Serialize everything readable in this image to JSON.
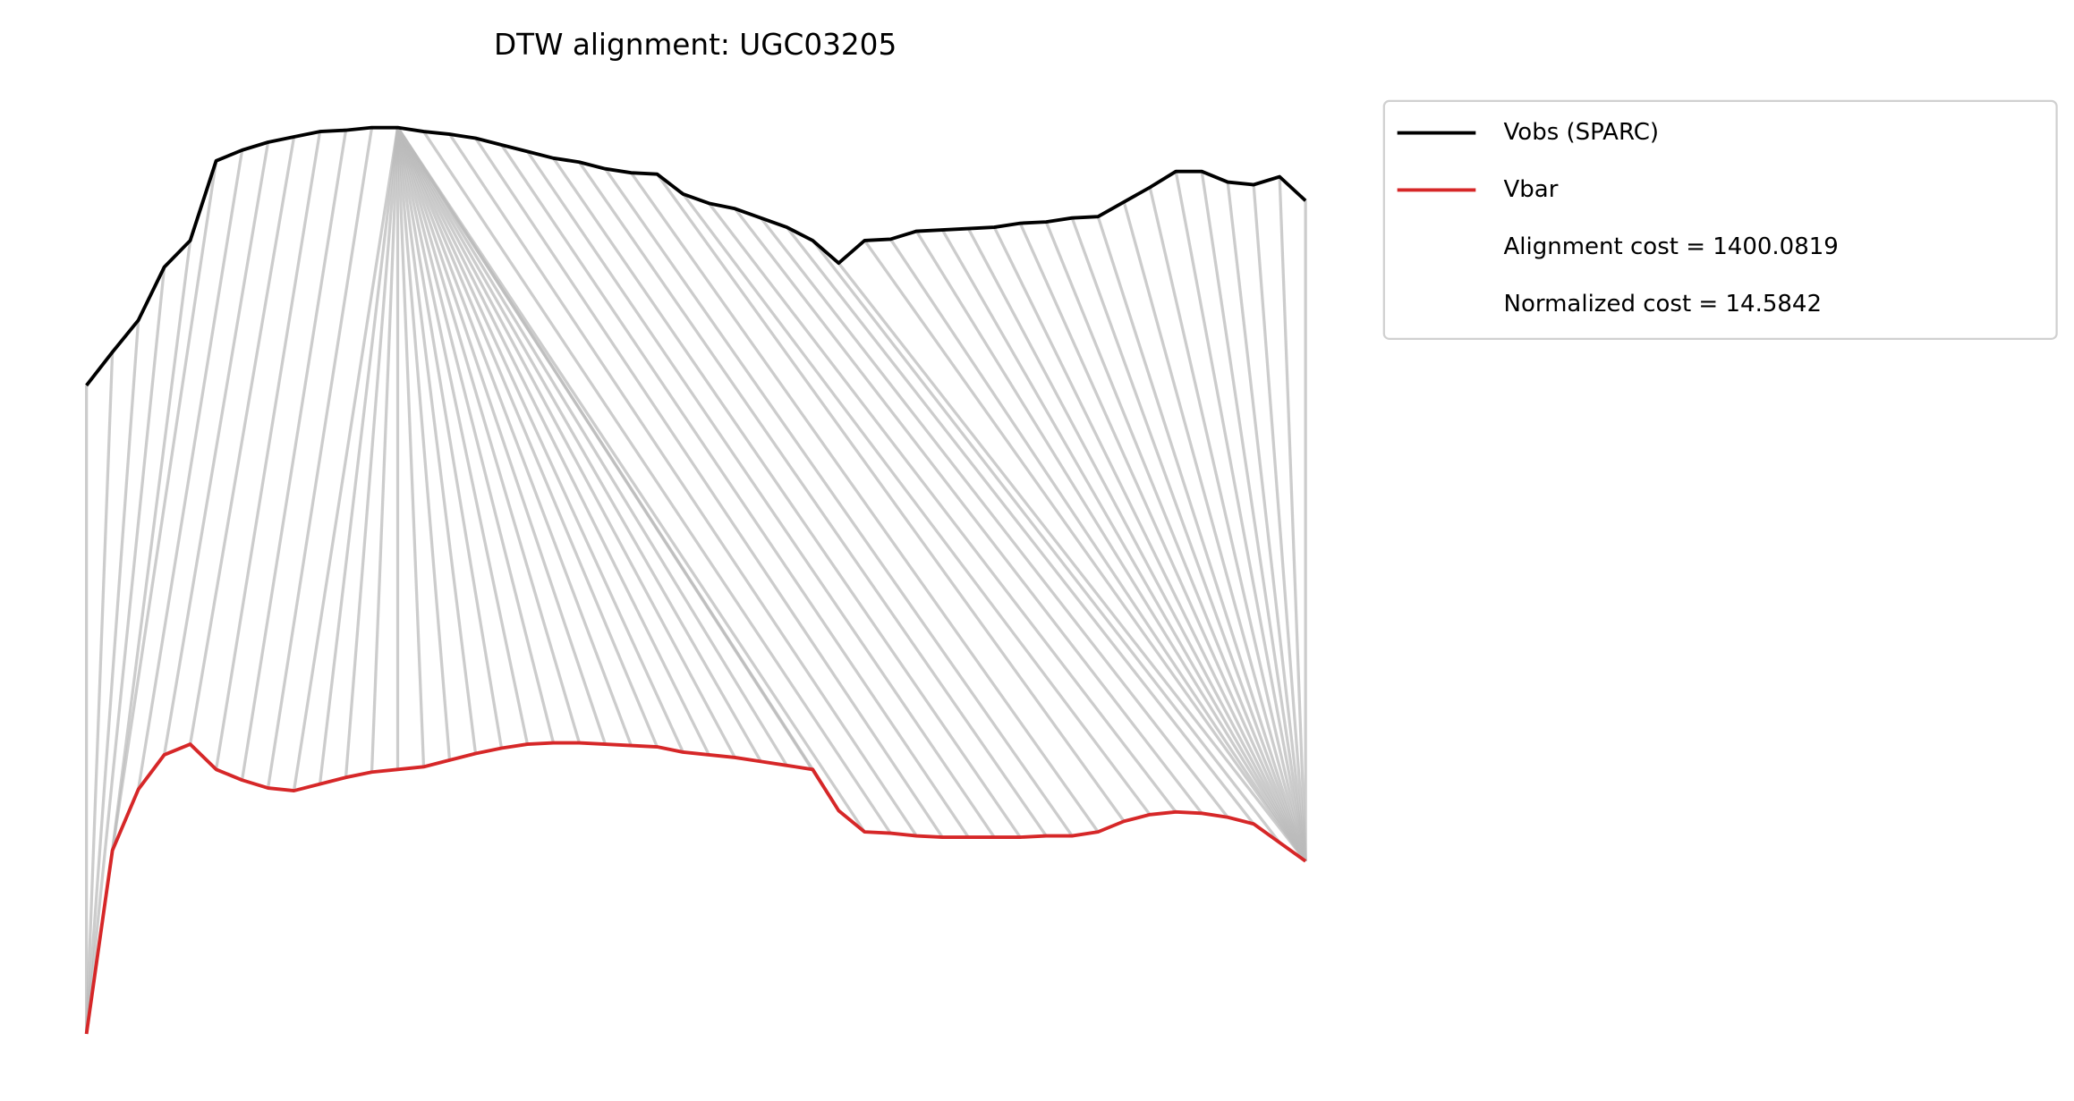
{
  "chart_data": {
    "type": "dtw",
    "title": "DTW alignment: UGC03205",
    "ylim": [
      0,
      200
    ],
    "series": [
      {
        "name": "Vobs (SPARC)",
        "color": "#000000",
        "values": [
          127.5,
          133.75,
          139.75,
          149.75,
          154.75,
          169.75,
          171.75,
          173.25,
          174.25,
          175.25,
          175.5,
          176,
          176,
          175.25,
          174.75,
          174,
          172.75,
          171.5,
          170.25,
          169.5,
          168.25,
          167.5,
          167.25,
          163.5,
          161.75,
          160.75,
          159,
          157.25,
          154.75,
          150.5,
          154.75,
          155,
          156.5,
          156.75,
          157,
          157.25,
          158,
          158.25,
          159,
          159.25,
          162,
          164.75,
          167.75,
          167.75,
          165.75,
          165.25,
          166.75,
          162.25
        ]
      },
      {
        "name": "Vbar",
        "color": "#d62728",
        "values": [
          5.5,
          40,
          51.5,
          58,
          60,
          55.25,
          53.25,
          51.75,
          51.25,
          52.5,
          53.75,
          54.75,
          55.25,
          55.75,
          57,
          58.25,
          59.25,
          60,
          60.25,
          60.25,
          60,
          59.75,
          59.5,
          58.5,
          58,
          57.5,
          56.75,
          56,
          55.25,
          47.5,
          43.5,
          43.25,
          42.75,
          42.5,
          42.5,
          42.5,
          42.5,
          42.75,
          42.75,
          43.5,
          45.5,
          46.75,
          47.25,
          47,
          46.25,
          45,
          41.5,
          38
        ]
      }
    ],
    "alignment_color": "#bbbbbb",
    "alignment": [
      [
        0,
        0
      ],
      [
        1,
        0
      ],
      [
        2,
        0
      ],
      [
        3,
        0
      ],
      [
        4,
        1
      ],
      [
        5,
        1
      ],
      [
        6,
        2
      ],
      [
        7,
        3
      ],
      [
        8,
        4
      ],
      [
        9,
        5
      ],
      [
        10,
        6
      ],
      [
        11,
        7
      ],
      [
        12,
        8
      ],
      [
        12,
        9
      ],
      [
        12,
        10
      ],
      [
        12,
        11
      ],
      [
        12,
        12
      ],
      [
        12,
        13
      ],
      [
        12,
        14
      ],
      [
        12,
        15
      ],
      [
        12,
        16
      ],
      [
        12,
        17
      ],
      [
        12,
        18
      ],
      [
        12,
        19
      ],
      [
        12,
        20
      ],
      [
        12,
        21
      ],
      [
        12,
        22
      ],
      [
        12,
        23
      ],
      [
        12,
        24
      ],
      [
        12,
        25
      ],
      [
        12,
        26
      ],
      [
        12,
        27
      ],
      [
        12,
        28
      ],
      [
        12,
        29
      ],
      [
        12,
        30
      ],
      [
        13,
        31
      ],
      [
        14,
        32
      ],
      [
        15,
        33
      ],
      [
        16,
        34
      ],
      [
        17,
        35
      ],
      [
        18,
        36
      ],
      [
        19,
        37
      ],
      [
        20,
        38
      ],
      [
        21,
        39
      ],
      [
        22,
        40
      ],
      [
        23,
        41
      ],
      [
        24,
        42
      ],
      [
        25,
        43
      ],
      [
        26,
        44
      ],
      [
        27,
        45
      ],
      [
        28,
        46
      ],
      [
        29,
        47
      ],
      [
        30,
        47
      ],
      [
        31,
        47
      ],
      [
        32,
        47
      ],
      [
        33,
        47
      ],
      [
        34,
        47
      ],
      [
        35,
        47
      ],
      [
        36,
        47
      ],
      [
        37,
        47
      ],
      [
        38,
        47
      ],
      [
        39,
        47
      ],
      [
        40,
        47
      ],
      [
        41,
        47
      ],
      [
        42,
        47
      ],
      [
        43,
        47
      ],
      [
        44,
        47
      ],
      [
        45,
        47
      ],
      [
        46,
        47
      ],
      [
        47,
        47
      ]
    ],
    "annotations": [
      "Alignment cost = 1400.0819",
      "Normalized cost = 14.5842"
    ]
  }
}
